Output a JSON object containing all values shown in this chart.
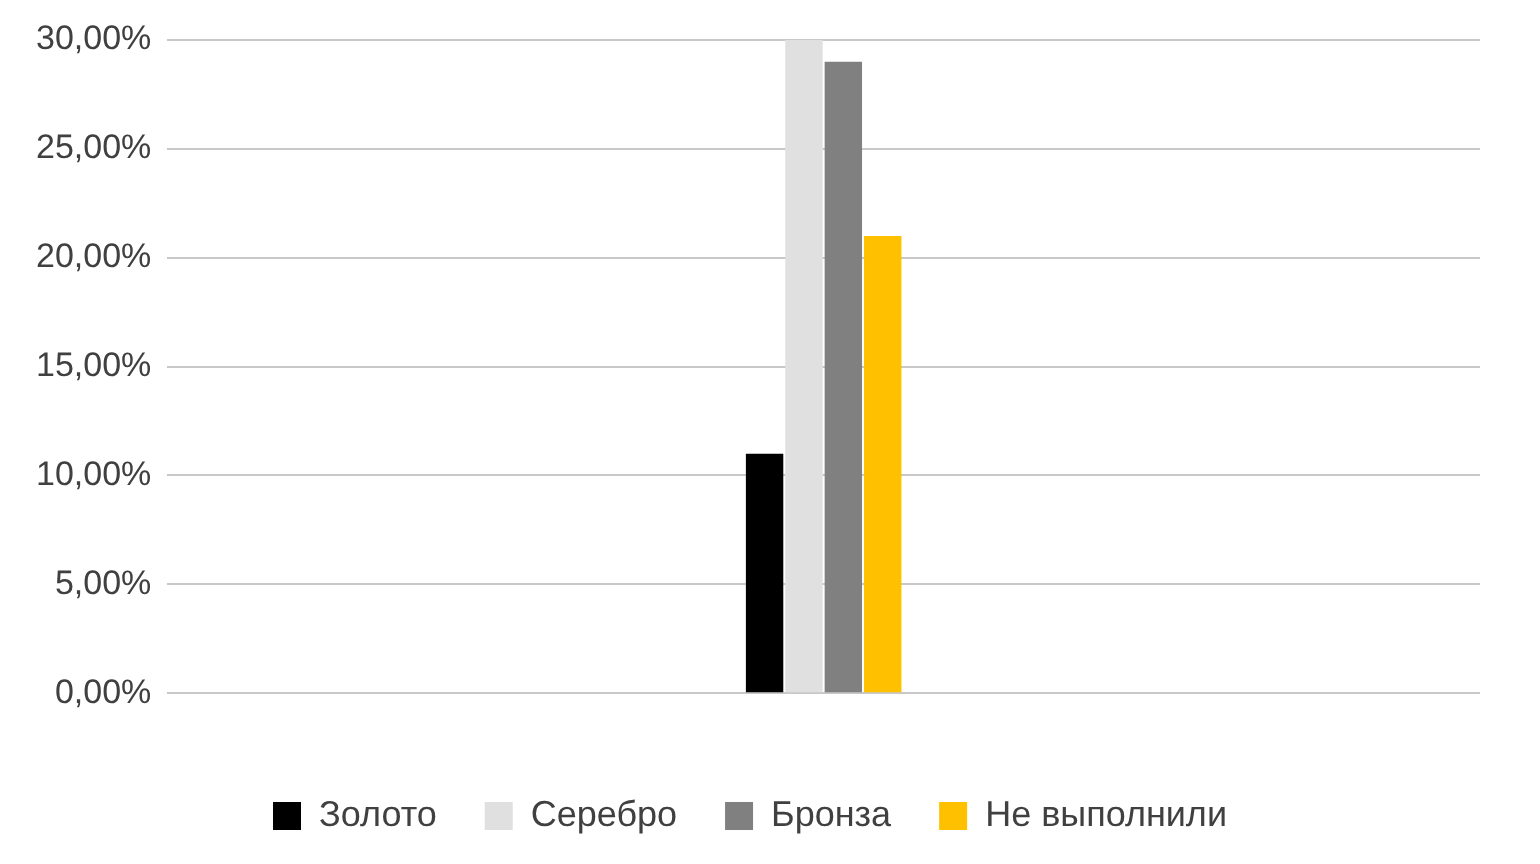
{
  "chart_data": {
    "type": "bar",
    "categories": [
      null
    ],
    "series": [
      {
        "name": "Золото",
        "color": "#000000",
        "values": [
          11
        ]
      },
      {
        "name": "Серебро",
        "color": "#e0e0e0",
        "values": [
          30
        ]
      },
      {
        "name": "Бронза",
        "color": "#808080",
        "values": [
          29
        ]
      },
      {
        "name": "Не выполнили",
        "color": "#ffc000",
        "values": [
          21
        ]
      }
    ],
    "ylim": [
      0,
      30
    ],
    "yticks": [
      {
        "value": 0,
        "label": "0,00%"
      },
      {
        "value": 5,
        "label": "5,00%"
      },
      {
        "value": 10,
        "label": "10,00%"
      },
      {
        "value": 15,
        "label": "15,00%"
      },
      {
        "value": 20,
        "label": "20,00%"
      },
      {
        "value": 25,
        "label": "25,00%"
      },
      {
        "value": 30,
        "label": "30,00%"
      }
    ],
    "grid": "y",
    "legend": "bottom"
  }
}
